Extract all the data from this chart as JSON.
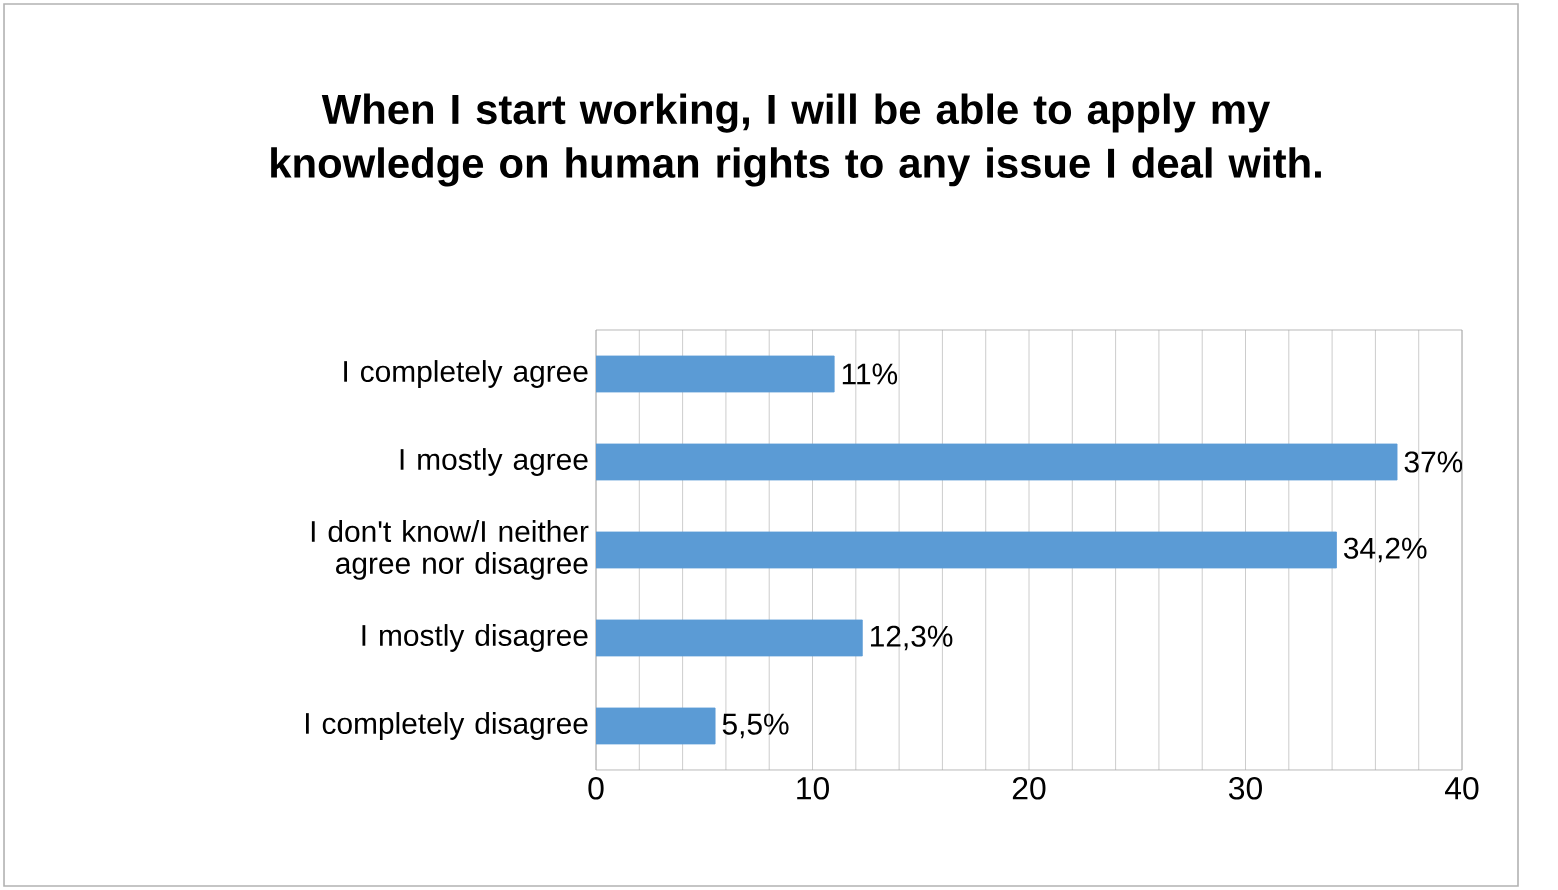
{
  "chart_data": {
    "type": "bar",
    "orientation": "horizontal",
    "title": "When I start working, I will be able to apply my knowledge on human rights to any issue I deal with.",
    "categories": [
      "I completely agree",
      "I mostly agree",
      "I don't know/I neither agree nor disagree",
      "I mostly disagree",
      "I completely disagree"
    ],
    "values": [
      11,
      37,
      34.2,
      12.3,
      5.5
    ],
    "value_labels": [
      "11%",
      "37%",
      "34,2%",
      "12,3%",
      "5,5%"
    ],
    "color": "#5b9bd5",
    "xlim": [
      0,
      40
    ],
    "xticks": [
      0,
      {
        "value": 2,
        "label": null
      },
      {
        "value": 4,
        "label": null
      },
      {
        "value": 6,
        "label": null
      },
      {
        "value": 8,
        "label": null
      },
      10,
      {
        "value": 12,
        "label": null
      },
      {
        "value": 14,
        "label": null
      },
      {
        "value": 16,
        "label": null
      },
      {
        "value": 18,
        "label": null
      },
      20,
      {
        "value": 22,
        "label": null
      },
      {
        "value": 24,
        "label": null
      },
      {
        "value": 26,
        "label": null
      },
      {
        "value": 28,
        "label": null
      },
      30,
      {
        "value": 32,
        "label": null
      },
      {
        "value": 34,
        "label": null
      },
      {
        "value": 36,
        "label": null
      },
      {
        "value": 38,
        "label": null
      },
      40
    ],
    "grid": "x"
  }
}
